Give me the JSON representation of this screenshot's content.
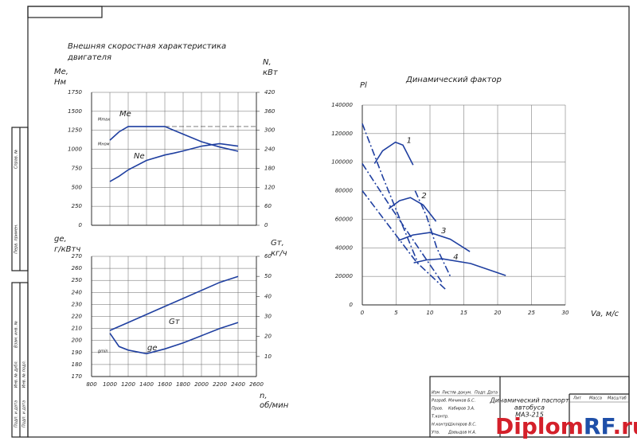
{
  "chart_data": [
    {
      "type": "line",
      "title": [
        "Внешняя скоростная характеристика",
        "двигателя"
      ],
      "ylabel": [
        "Me,",
        "Нм"
      ],
      "y2label": [
        "N,",
        "кВт"
      ],
      "x": [
        1000,
        1100,
        1200,
        1400,
        1600,
        1700,
        1800,
        2000,
        2200,
        2400
      ],
      "xlim": [
        800,
        2600
      ],
      "xticks": [
        800,
        1000,
        1200,
        1400,
        1600,
        1800,
        2000,
        2200,
        2400,
        2600
      ],
      "show_xtick_labels": false,
      "ylim": [
        0,
        1750
      ],
      "yticks": [
        0,
        250,
        500,
        750,
        1000,
        1250,
        1500,
        1750
      ],
      "y2lim": [
        0,
        420
      ],
      "y2ticks": [
        0,
        60,
        120,
        180,
        240,
        300,
        360,
        420
      ],
      "grid": true,
      "ref_line": 1300,
      "ref_labels": [
        "Mmax",
        "Mном"
      ],
      "series": [
        {
          "name": "Me",
          "color": "#1f3fa0",
          "values": [
            1120,
            1230,
            1300,
            1300,
            1300,
            1250,
            1200,
            1100,
            1030,
            975
          ]
        },
        {
          "name": "Ne",
          "color": "#1f3fa0",
          "axis": "y2",
          "values": [
            138,
            155,
            175,
            205,
            222,
            228,
            235,
            250,
            258,
            250
          ]
        }
      ]
    },
    {
      "type": "line",
      "ylabel": [
        "ge,",
        "г/кВтч"
      ],
      "y2label": [
        "Gт,",
        "кг/ч"
      ],
      "xlabel": [
        "n,",
        "об/мин"
      ],
      "x": [
        1000,
        1100,
        1200,
        1400,
        1600,
        1800,
        2000,
        2200,
        2400
      ],
      "xlim": [
        800,
        2600
      ],
      "xticks": [
        800,
        1000,
        1200,
        1400,
        1600,
        1800,
        2000,
        2200,
        2400,
        2600
      ],
      "ylim": [
        170,
        270
      ],
      "yticks": [
        170,
        180,
        190,
        200,
        210,
        220,
        230,
        240,
        250,
        260,
        270
      ],
      "y2lim": [
        0,
        60
      ],
      "y2ticks": [
        10,
        20,
        30,
        40,
        50,
        60
      ],
      "grid": true,
      "ref_labels": [
        "gmin"
      ],
      "series": [
        {
          "name": "ge",
          "color": "#1f3fa0",
          "values": [
            206,
            195,
            192,
            189,
            193,
            198,
            204,
            210,
            215
          ]
        },
        {
          "name": "Gт",
          "color": "#1f3fa0",
          "axis": "y2",
          "values": [
            23,
            25,
            27,
            31,
            35,
            39,
            43,
            47,
            50
          ]
        }
      ]
    },
    {
      "type": "line",
      "title": [
        "Динамический фактор"
      ],
      "ylabel": [
        "Pl"
      ],
      "xlabel": [
        "Va, м/с"
      ],
      "xlim": [
        0,
        30
      ],
      "xticks": [
        0,
        5,
        10,
        15,
        20,
        25,
        30
      ],
      "ylim": [
        0,
        140000
      ],
      "yticks": [
        0,
        20000,
        40000,
        60000,
        80000,
        100000,
        120000,
        140000
      ],
      "grid": true,
      "series": [
        {
          "name": "1",
          "color": "#1f3fa0",
          "x": [
            1.8,
            3,
            4.9,
            6,
            7.5
          ],
          "values": [
            99000,
            108000,
            114000,
            112000,
            98000
          ]
        },
        {
          "name": "2",
          "color": "#1f3fa0",
          "x": [
            3.9,
            5.5,
            7.1,
            9,
            10.9
          ],
          "values": [
            67400,
            73000,
            75200,
            70000,
            58500
          ]
        },
        {
          "name": "3",
          "color": "#1f3fa0",
          "x": [
            5.3,
            7.5,
            10,
            13,
            15.9
          ],
          "values": [
            45000,
            49000,
            50700,
            46000,
            37300
          ]
        },
        {
          "name": "4",
          "color": "#1f3fa0",
          "x": [
            7.6,
            9.5,
            11.8,
            16,
            21.2
          ],
          "values": [
            29500,
            31500,
            32300,
            29000,
            20600
          ]
        },
        {
          "color": "#1f3fa0",
          "dash": "9 3 2 3",
          "x": [
            0,
            3,
            6,
            8.2
          ],
          "values": [
            127000,
            90000,
            55000,
            29500
          ]
        },
        {
          "color": "#1f3fa0",
          "dash": "9 3 2 3",
          "x": [
            0,
            4,
            8,
            11.8
          ],
          "values": [
            99000,
            70000,
            42000,
            15600
          ]
        },
        {
          "color": "#1f3fa0",
          "dash": "9 3 2 3",
          "x": [
            0,
            4,
            8,
            12.5
          ],
          "values": [
            80000,
            55000,
            30000,
            10000
          ]
        },
        {
          "color": "#1f3fa0",
          "dash": "9 3 2 3",
          "x": [
            7.8,
            9.5,
            11,
            13
          ],
          "values": [
            80000,
            62000,
            40000,
            20000
          ]
        }
      ]
    }
  ],
  "title_block": {
    "title": [
      "Динамический паспорт",
      "автобуса",
      "МАЗ-215"
    ],
    "headers": [
      "Изм",
      "Лист",
      "№ докум.",
      "Подп.",
      "Дата"
    ],
    "roles": [
      "Разраб.",
      "Пров.",
      "Т.контр.",
      "Н.контр.",
      "Утв."
    ],
    "names": [
      "Мячиков Б.С.",
      "Кабиров З.А.",
      "Шкляров В.С.",
      "Давыдов Н.А."
    ],
    "columns": [
      "Лит",
      "Масса",
      "Масштаб"
    ]
  },
  "side_stamp": [
    "Перв. примен.",
    "Справ. №",
    "Подп. и дата",
    "Инв. № дубл.",
    "Взам. инв. №",
    "Подп. и дата",
    "Инв. № подл."
  ],
  "watermark": [
    "Diplom",
    "RF",
    ".ru"
  ]
}
